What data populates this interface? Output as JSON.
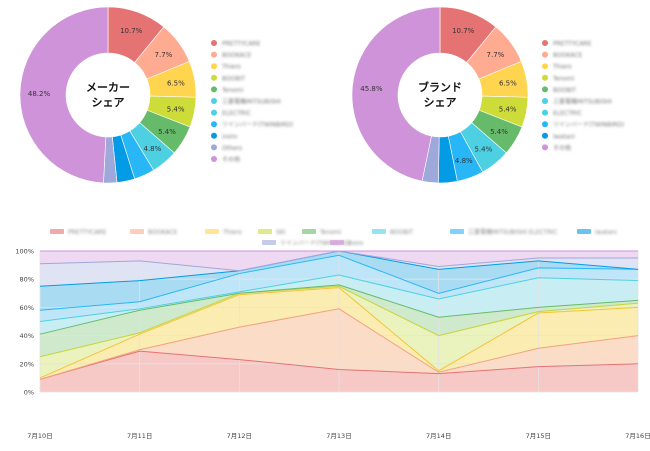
{
  "colors": {
    "grid": "#e3e3e3",
    "axis_text": "#444444",
    "hole": "#ffffff"
  },
  "chart_data": [
    {
      "type": "pie",
      "variant": "donut",
      "center_label": [
        "メーカー",
        "シェア"
      ],
      "slices": [
        {
          "value": 10.7,
          "label": "10.7%",
          "color": "#e57373"
        },
        {
          "value": 7.7,
          "label": "7.7%",
          "color": "#ffab91"
        },
        {
          "value": 6.5,
          "label": "6.5%",
          "color": "#ffd54f"
        },
        {
          "value": 5.4,
          "label": "5.4%",
          "color": "#cddc39"
        },
        {
          "value": 5.4,
          "label": "5.4%",
          "color": "#66bb6a"
        },
        {
          "value": 4.8,
          "label": "4.8%",
          "color": "#4dd0e1"
        },
        {
          "value": 3.7,
          "label": "",
          "color": "#29b6f6"
        },
        {
          "value": 3.2,
          "label": "",
          "color": "#039be5"
        },
        {
          "value": 2.4,
          "label": "",
          "color": "#9fa8da"
        },
        {
          "value": 48.2,
          "label": "48.2%",
          "color": "#ce93d8"
        }
      ],
      "legend": [
        {
          "text": "PRETTYCARE",
          "color": "#e57373"
        },
        {
          "text": "BOOKACE",
          "color": "#ffab91"
        },
        {
          "text": "Thiero",
          "color": "#ffd54f"
        },
        {
          "text": "BOOBIT",
          "color": "#cddc39"
        },
        {
          "text": "Tenomi",
          "color": "#66bb6a"
        },
        {
          "text": "三菱電機MITSUBISHI",
          "color": "#4dd0e1"
        },
        {
          "text": "ELECTRIC",
          "color": "#4dd0e1"
        },
        {
          "text": "ツインバード(TWINBIRD)",
          "color": "#29b6f6"
        },
        {
          "text": "iroiro",
          "color": "#039be5"
        },
        {
          "text": "Others",
          "color": "#9fa8da"
        },
        {
          "text": "その他",
          "color": "#ce93d8"
        }
      ]
    },
    {
      "type": "pie",
      "variant": "donut",
      "center_label": [
        "ブランド",
        "シェア"
      ],
      "slices": [
        {
          "value": 10.7,
          "label": "10.7%",
          "color": "#e57373"
        },
        {
          "value": 7.7,
          "label": "7.7%",
          "color": "#ffab91"
        },
        {
          "value": 6.5,
          "label": "6.5%",
          "color": "#ffd54f"
        },
        {
          "value": 5.4,
          "label": "5.4%",
          "color": "#cddc39"
        },
        {
          "value": 5.4,
          "label": "5.4%",
          "color": "#66bb6a"
        },
        {
          "value": 5.4,
          "label": "5.4%",
          "color": "#4dd0e1"
        },
        {
          "value": 4.8,
          "label": "4.8%",
          "color": "#29b6f6"
        },
        {
          "value": 3.4,
          "label": "",
          "color": "#039be5"
        },
        {
          "value": 2.9,
          "label": "",
          "color": "#9fa8da"
        },
        {
          "value": 45.8,
          "label": "45.8%",
          "color": "#ce93d8"
        }
      ],
      "legend": [
        {
          "text": "PRETTYCARE",
          "color": "#e57373"
        },
        {
          "text": "BOOKACE",
          "color": "#ffab91"
        },
        {
          "text": "Thiero",
          "color": "#ffd54f"
        },
        {
          "text": "Tenomi",
          "color": "#cddc39"
        },
        {
          "text": "BOOBIT",
          "color": "#66bb6a"
        },
        {
          "text": "三菱電機MITSUBISHI",
          "color": "#4dd0e1"
        },
        {
          "text": "ELECTRIC",
          "color": "#4dd0e1"
        },
        {
          "text": "ツインバード(TWINBIRD)",
          "color": "#29b6f6"
        },
        {
          "text": "Iwatani",
          "color": "#039be5"
        },
        {
          "text": "その他",
          "color": "#ce93d8"
        }
      ]
    },
    {
      "type": "area",
      "stacked": true,
      "percent": true,
      "x": [
        "7月10日",
        "7月11日",
        "7月12日",
        "7月13日",
        "7月14日",
        "7月15日",
        "7月16日"
      ],
      "y_ticks": [
        "0%",
        "20%",
        "40%",
        "60%",
        "80%",
        "100%"
      ],
      "ylim": [
        0,
        100
      ],
      "grid": true,
      "legend_position": "top",
      "cumulative_lines": [
        {
          "color": "#e57373",
          "fill": "#f6c9c6",
          "values": [
            9,
            29,
            23,
            16,
            13,
            18,
            20
          ]
        },
        {
          "color": "#f0a37f",
          "fill": "#fbdcc7",
          "values": [
            9,
            30,
            46,
            59,
            14,
            31,
            40
          ]
        },
        {
          "color": "#f4c43a",
          "fill": "#fbedb2",
          "values": [
            10,
            41,
            69,
            74,
            15,
            56,
            60
          ]
        },
        {
          "color": "#c7d33b",
          "fill": "#eaf2bd",
          "values": [
            25,
            42,
            70,
            75,
            40,
            57,
            63
          ]
        },
        {
          "color": "#66bb6a",
          "fill": "#cfe9cc",
          "values": [
            41,
            58,
            70,
            76,
            53,
            60,
            65
          ]
        },
        {
          "color": "#4dd0e1",
          "fill": "#c8eef3",
          "values": [
            50,
            59,
            71,
            83,
            66,
            81,
            79
          ]
        },
        {
          "color": "#29b6f6",
          "fill": "#bfe6f8",
          "values": [
            58,
            64,
            84,
            97,
            70,
            88,
            87
          ]
        },
        {
          "color": "#039be5",
          "fill": "#a9dcf3",
          "values": [
            75,
            79,
            86,
            100,
            87,
            93,
            87
          ]
        },
        {
          "color": "#9fa8da",
          "fill": "#dfe3f4",
          "values": [
            91,
            93,
            86,
            100,
            89,
            95,
            95
          ]
        },
        {
          "color": "#ce93d8",
          "fill": "#efd8f1",
          "values": [
            100,
            100,
            100,
            100,
            100,
            100,
            100
          ]
        }
      ],
      "legend": [
        {
          "text": "PRETTYCARE",
          "color": "#e57373"
        },
        {
          "text": "BOOKACE",
          "color": "#ffab91"
        },
        {
          "text": "Thiero",
          "color": "#ffd54f"
        },
        {
          "text": "SKI",
          "color": "#cddc39"
        },
        {
          "text": "Tenomi",
          "color": "#66bb6a"
        },
        {
          "text": "BOOBIT",
          "color": "#4dd0e1"
        },
        {
          "text": "三菱電機MITSUBISHI ELECTRIC",
          "color": "#29b6f6"
        },
        {
          "text": "iwatani",
          "color": "#039be5"
        },
        {
          "text": "ツインバード(TWINBIRD)",
          "color": "#9fa8da"
        },
        {
          "text": "iroiro",
          "color": "#ce93d8"
        }
      ]
    }
  ]
}
